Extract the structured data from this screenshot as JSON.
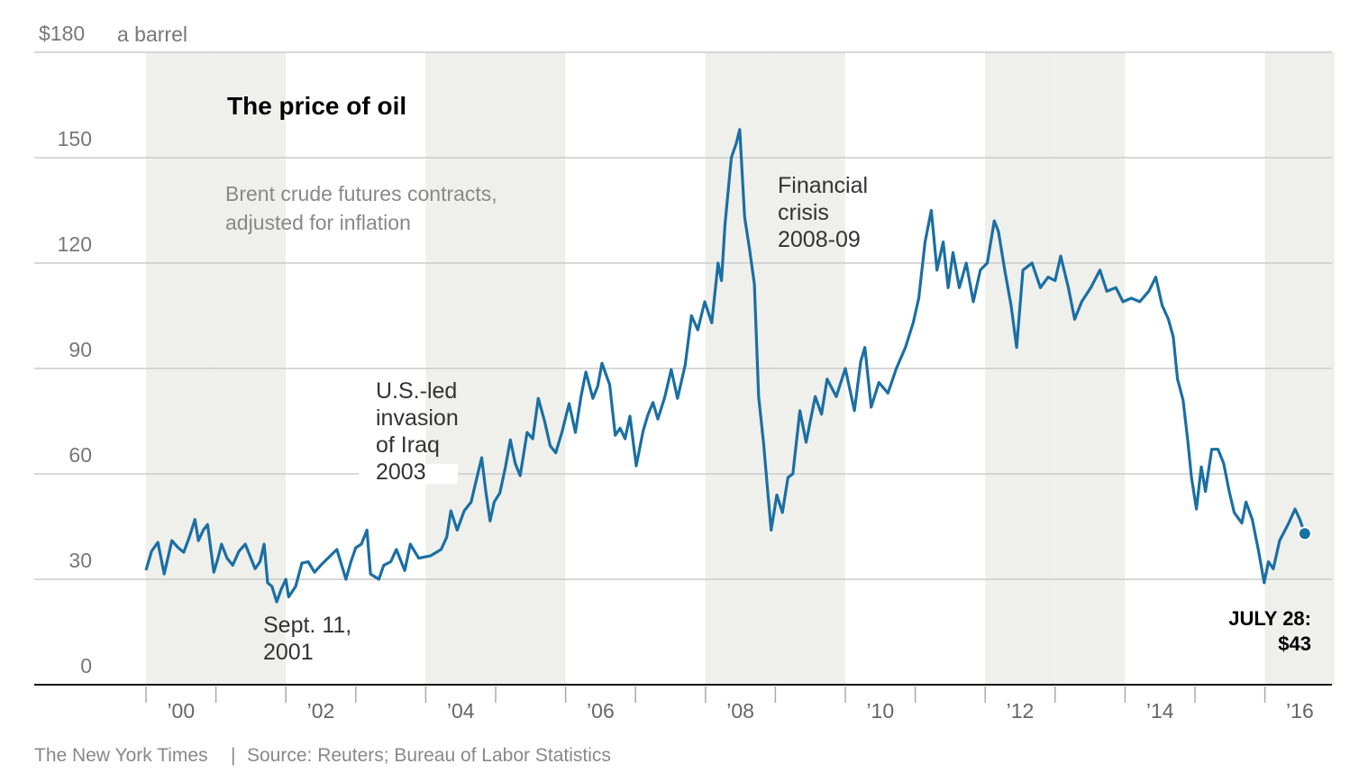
{
  "chart_data": {
    "type": "line",
    "title": "The price of oil",
    "subtitle": [
      "Brent crude futures contracts,",
      "adjusted for inflation"
    ],
    "ylabel_unit": "a barrel",
    "y_ticks": [
      {
        "value": 0,
        "label": "0"
      },
      {
        "value": 30,
        "label": "30"
      },
      {
        "value": 60,
        "label": "60"
      },
      {
        "value": 90,
        "label": "90"
      },
      {
        "value": 120,
        "label": "120"
      },
      {
        "value": 150,
        "label": "150"
      },
      {
        "value": 180,
        "label": "$180"
      }
    ],
    "ylim": [
      0,
      180
    ],
    "xlim": [
      2000,
      2017
    ],
    "x_ticks": [
      {
        "year": 2000,
        "label": "’00"
      },
      {
        "year": 2002,
        "label": "’02"
      },
      {
        "year": 2004,
        "label": "’04"
      },
      {
        "year": 2006,
        "label": "’06"
      },
      {
        "year": 2008,
        "label": "’08"
      },
      {
        "year": 2010,
        "label": "’10"
      },
      {
        "year": 2012,
        "label": "’12"
      },
      {
        "year": 2014,
        "label": "’14"
      },
      {
        "year": 2016,
        "label": "’16"
      }
    ],
    "shaded_years": [
      2000,
      2001,
      2004,
      2005,
      2008,
      2009,
      2012,
      2013,
      2016
    ],
    "grid": true,
    "series": [
      {
        "name": "Brent crude (inflation-adjusted)",
        "color": "#1a6fa3",
        "points": [
          [
            2000.0,
            32.6
          ],
          [
            2000.08,
            38
          ],
          [
            2000.17,
            40.5
          ],
          [
            2000.26,
            31.5
          ],
          [
            2000.37,
            41
          ],
          [
            2000.46,
            39
          ],
          [
            2000.54,
            37.7
          ],
          [
            2000.62,
            42
          ],
          [
            2000.7,
            47
          ],
          [
            2000.75,
            41
          ],
          [
            2000.82,
            44
          ],
          [
            2000.88,
            45.6
          ],
          [
            2000.97,
            32
          ],
          [
            2001.03,
            36
          ],
          [
            2001.08,
            40
          ],
          [
            2001.16,
            36
          ],
          [
            2001.24,
            34
          ],
          [
            2001.33,
            38
          ],
          [
            2001.42,
            40
          ],
          [
            2001.5,
            36
          ],
          [
            2001.56,
            33
          ],
          [
            2001.63,
            35
          ],
          [
            2001.69,
            40
          ],
          [
            2001.74,
            29
          ],
          [
            2001.8,
            28
          ],
          [
            2001.87,
            23.6
          ],
          [
            2001.93,
            27
          ],
          [
            2002.0,
            30
          ],
          [
            2002.04,
            25
          ],
          [
            2002.14,
            28
          ],
          [
            2002.23,
            34.6
          ],
          [
            2002.32,
            35
          ],
          [
            2002.41,
            32
          ],
          [
            2002.5,
            34
          ],
          [
            2002.6,
            36
          ],
          [
            2002.73,
            38.5
          ],
          [
            2002.86,
            30
          ],
          [
            2002.93,
            35
          ],
          [
            2003.0,
            39
          ],
          [
            2003.08,
            40
          ],
          [
            2003.16,
            44
          ],
          [
            2003.21,
            31.5
          ],
          [
            2003.33,
            30
          ],
          [
            2003.4,
            34
          ],
          [
            2003.5,
            35
          ],
          [
            2003.58,
            38.5
          ],
          [
            2003.7,
            32.5
          ],
          [
            2003.78,
            40
          ],
          [
            2003.9,
            36
          ],
          [
            2004.07,
            36.7
          ],
          [
            2004.22,
            38.5
          ],
          [
            2004.3,
            42
          ],
          [
            2004.36,
            49.5
          ],
          [
            2004.45,
            44
          ],
          [
            2004.55,
            49.5
          ],
          [
            2004.65,
            52
          ],
          [
            2004.72,
            58
          ],
          [
            2004.8,
            64.6
          ],
          [
            2004.86,
            55
          ],
          [
            2004.92,
            46.6
          ],
          [
            2004.98,
            52
          ],
          [
            2005.06,
            54.6
          ],
          [
            2005.14,
            62
          ],
          [
            2005.21,
            69.7
          ],
          [
            2005.28,
            63
          ],
          [
            2005.35,
            59.5
          ],
          [
            2005.45,
            71.8
          ],
          [
            2005.53,
            70
          ],
          [
            2005.61,
            81.5
          ],
          [
            2005.7,
            75
          ],
          [
            2005.78,
            68
          ],
          [
            2005.86,
            66
          ],
          [
            2005.95,
            72
          ],
          [
            2006.05,
            80
          ],
          [
            2006.14,
            71.8
          ],
          [
            2006.22,
            82
          ],
          [
            2006.29,
            89
          ],
          [
            2006.39,
            81.5
          ],
          [
            2006.46,
            85
          ],
          [
            2006.52,
            91.5
          ],
          [
            2006.63,
            85.4
          ],
          [
            2006.71,
            71
          ],
          [
            2006.78,
            73
          ],
          [
            2006.85,
            70
          ],
          [
            2006.92,
            76.4
          ],
          [
            2007.01,
            62.3
          ],
          [
            2007.11,
            72.3
          ],
          [
            2007.18,
            77
          ],
          [
            2007.25,
            80.3
          ],
          [
            2007.32,
            75.6
          ],
          [
            2007.42,
            82
          ],
          [
            2007.51,
            89.7
          ],
          [
            2007.6,
            81.5
          ],
          [
            2007.71,
            91
          ],
          [
            2007.8,
            105
          ],
          [
            2007.89,
            101
          ],
          [
            2007.99,
            109
          ],
          [
            2008.09,
            103
          ],
          [
            2008.18,
            120
          ],
          [
            2008.23,
            115
          ],
          [
            2008.28,
            131
          ],
          [
            2008.37,
            150
          ],
          [
            2008.44,
            154
          ],
          [
            2008.49,
            158
          ],
          [
            2008.56,
            133
          ],
          [
            2008.63,
            124
          ],
          [
            2008.7,
            114
          ],
          [
            2008.76,
            82
          ],
          [
            2008.83,
            69
          ],
          [
            2008.89,
            55
          ],
          [
            2008.94,
            44
          ],
          [
            2009.02,
            54
          ],
          [
            2009.1,
            49
          ],
          [
            2009.18,
            59
          ],
          [
            2009.25,
            60
          ],
          [
            2009.35,
            78
          ],
          [
            2009.44,
            69
          ],
          [
            2009.57,
            82
          ],
          [
            2009.66,
            77
          ],
          [
            2009.74,
            87
          ],
          [
            2009.87,
            82
          ],
          [
            2010.0,
            90
          ],
          [
            2010.13,
            78
          ],
          [
            2010.22,
            92
          ],
          [
            2010.28,
            96
          ],
          [
            2010.37,
            79
          ],
          [
            2010.48,
            86
          ],
          [
            2010.61,
            83
          ],
          [
            2010.73,
            90
          ],
          [
            2010.86,
            96
          ],
          [
            2010.97,
            103
          ],
          [
            2011.05,
            110
          ],
          [
            2011.14,
            126
          ],
          [
            2011.23,
            135
          ],
          [
            2011.31,
            118
          ],
          [
            2011.4,
            126
          ],
          [
            2011.47,
            113
          ],
          [
            2011.54,
            123
          ],
          [
            2011.63,
            113
          ],
          [
            2011.73,
            120
          ],
          [
            2011.83,
            109
          ],
          [
            2011.93,
            118
          ],
          [
            2012.03,
            120
          ],
          [
            2012.13,
            132
          ],
          [
            2012.19,
            129
          ],
          [
            2012.28,
            118
          ],
          [
            2012.37,
            108
          ],
          [
            2012.45,
            96
          ],
          [
            2012.54,
            118
          ],
          [
            2012.67,
            120
          ],
          [
            2012.79,
            113
          ],
          [
            2012.9,
            116
          ],
          [
            2013.0,
            115
          ],
          [
            2013.08,
            122
          ],
          [
            2013.19,
            113
          ],
          [
            2013.28,
            104
          ],
          [
            2013.38,
            109
          ],
          [
            2013.51,
            113
          ],
          [
            2013.64,
            118
          ],
          [
            2013.74,
            112
          ],
          [
            2013.87,
            113
          ],
          [
            2013.97,
            109
          ],
          [
            2014.09,
            110
          ],
          [
            2014.21,
            109
          ],
          [
            2014.34,
            112
          ],
          [
            2014.44,
            116
          ],
          [
            2014.53,
            108
          ],
          [
            2014.62,
            104
          ],
          [
            2014.69,
            99
          ],
          [
            2014.75,
            87
          ],
          [
            2014.83,
            81
          ],
          [
            2014.9,
            69
          ],
          [
            2014.95,
            59
          ],
          [
            2015.02,
            50
          ],
          [
            2015.09,
            62
          ],
          [
            2015.15,
            55
          ],
          [
            2015.24,
            67
          ],
          [
            2015.33,
            67
          ],
          [
            2015.41,
            63
          ],
          [
            2015.49,
            55
          ],
          [
            2015.56,
            49
          ],
          [
            2015.67,
            46
          ],
          [
            2015.73,
            52
          ],
          [
            2015.82,
            47
          ],
          [
            2015.91,
            38
          ],
          [
            2015.99,
            29
          ],
          [
            2016.05,
            35
          ],
          [
            2016.12,
            33
          ],
          [
            2016.21,
            41
          ],
          [
            2016.34,
            46
          ],
          [
            2016.43,
            50
          ],
          [
            2016.5,
            47
          ]
        ],
        "last_point": [
          2016.57,
          43
        ]
      }
    ],
    "annotations": {
      "sept11": [
        "Sept. 11,",
        "2001"
      ],
      "iraq": [
        "U.S.-led",
        "invasion",
        "of Iraq",
        "2003"
      ],
      "crisis": [
        "Financial",
        "crisis",
        "2008-09"
      ],
      "latest": [
        "JULY 28:",
        "$43"
      ]
    },
    "footer": {
      "publisher": "The New York Times",
      "separator": "|",
      "source": "Source: Reuters; Bureau of Labor Statistics"
    }
  }
}
